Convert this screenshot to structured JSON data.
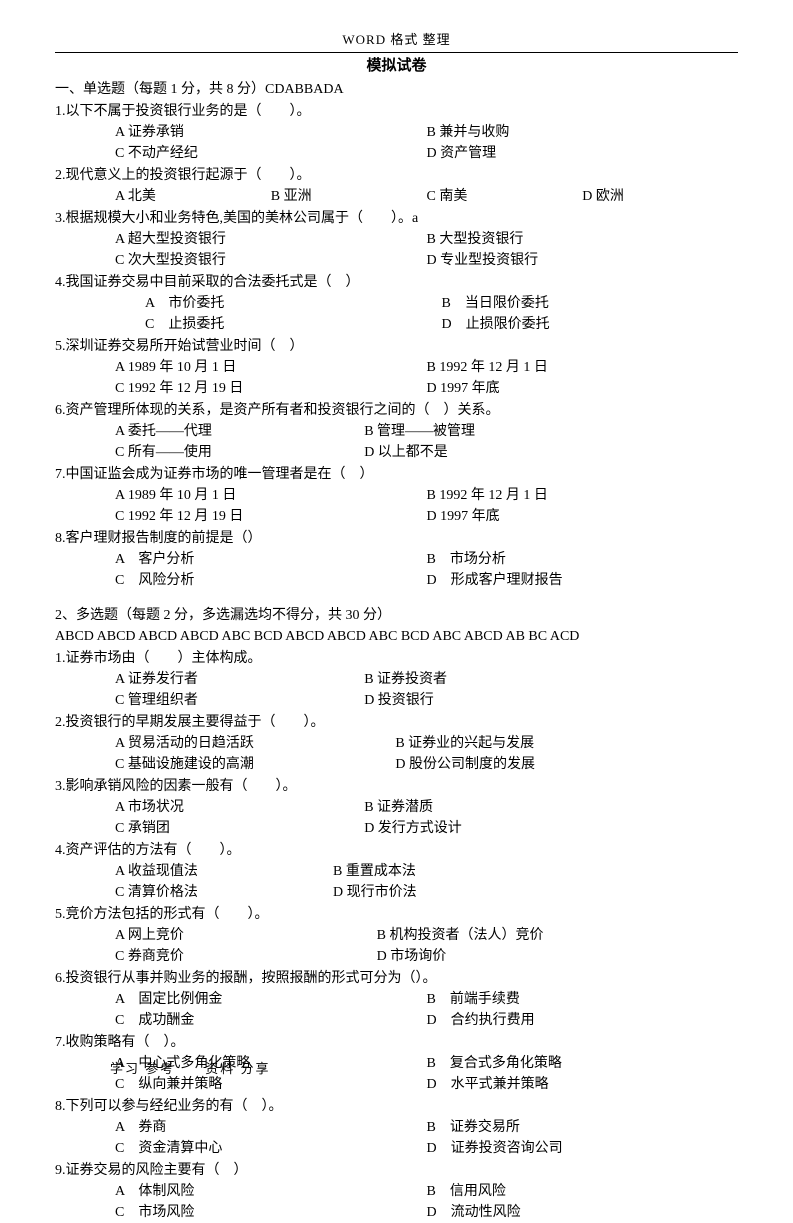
{
  "header": {
    "label": "WORD  格式  整理"
  },
  "title": "模拟试卷",
  "section1": {
    "header": "一、单选题（每题 1 分，共 8 分）CDABBADA",
    "q1": {
      "stem": "1.以下不属于投资银行业务的是（　　）。",
      "a": "A 证券承销",
      "b": "B 兼并与收购",
      "c": "C 不动产经纪",
      "d": "D 资产管理"
    },
    "q2": {
      "stem": "2.现代意义上的投资银行起源于（　　）。",
      "a": "A 北美",
      "b": "B 亚洲",
      "c": "C 南美",
      "d": "D 欧洲"
    },
    "q3": {
      "stem": "3.根据规模大小和业务特色,美国的美林公司属于（　　）。a",
      "a": "A 超大型投资银行",
      "b": "B 大型投资银行",
      "c": "C 次大型投资银行",
      "d": "D 专业型投资银行"
    },
    "q4": {
      "stem": "4.我国证券交易中目前采取的合法委托式是（　）",
      "a": "A　市价委托",
      "b": "B　当日限价委托",
      "c": "C　止损委托",
      "d": "D　止损限价委托"
    },
    "q5": {
      "stem": "5.深圳证券交易所开始试营业时间（　）",
      "a": "A 1989 年 10 月 1 日",
      "b": "B 1992 年 12 月 1 日",
      "c": "C 1992 年 12 月 19 日",
      "d": "D 1997 年底"
    },
    "q6": {
      "stem": "6.资产管理所体现的关系，是资产所有者和投资银行之间的（　）关系。",
      "a": "A 委托――代理",
      "b": "B 管理――被管理",
      "c": "C 所有――使用",
      "d": "D 以上都不是"
    },
    "q7": {
      "stem": "7.中国证监会成为证券市场的唯一管理者是在（　）",
      "a": "A 1989 年 10 月 1 日",
      "b": "B 1992 年 12 月 1 日",
      "c": "C 1992 年 12 月 19 日",
      "d": "D 1997 年底"
    },
    "q8": {
      "stem": "8.客户理财报告制度的前提是（）",
      "a": "A　客户分析",
      "b": "B　市场分析",
      "c": "C　风险分析",
      "d": "D　形成客户理财报告"
    }
  },
  "section2": {
    "header": "2、多选题（每题 2 分，多选漏选均不得分，共 30 分）",
    "answers": "ABCD ABCD ABCD ABCD ABC BCD ABCD ABCD ABC BCD ABC ABCD AB BC ACD",
    "q1": {
      "stem": "1.证券市场由（　　）主体构成。",
      "a": "A 证券发行者",
      "b": "B 证券投资者",
      "c": "C 管理组织者",
      "d": "D 投资银行"
    },
    "q2": {
      "stem": "2.投资银行的早期发展主要得益于（　　）。",
      "a": "A 贸易活动的日趋活跃",
      "b": "B 证券业的兴起与发展",
      "c": "C 基础设施建设的高潮",
      "d": "D 股份公司制度的发展"
    },
    "q3": {
      "stem": "3.影响承销风险的因素一般有（　　）。",
      "a": "A 市场状况",
      "b": "B 证券潜质",
      "c": "C 承销团",
      "d": "D 发行方式设计"
    },
    "q4": {
      "stem": "4.资产评估的方法有（　　）。",
      "a": "A 收益现值法",
      "b": "B 重置成本法",
      "c": "C 清算价格法",
      "d": "D 现行市价法"
    },
    "q5": {
      "stem": "5.竞价方法包括的形式有（　　）。",
      "a": "A 网上竞价",
      "b": "B 机构投资者（法人）竞价",
      "c": "C 券商竞价",
      "d": "D 市场询价"
    },
    "q6": {
      "stem": "6.投资银行从事并购业务的报酬，按照报酬的形式可分为（）。",
      "a": "A　固定比例佣金",
      "b": "B　前端手续费",
      "c": "C　成功酬金",
      "d": "D　合约执行费用"
    },
    "q7": {
      "stem": "7.收购策略有（　）。",
      "a": "A　中心式多角化策略",
      "b": "B　复合式多角化策略",
      "c": "C　纵向兼并策略",
      "d": "D　水平式兼并策略"
    },
    "q8": {
      "stem": "8.下列可以参与经纪业务的有（　）。",
      "a": "A　券商",
      "b": "B　证券交易所",
      "c": "C　资金清算中心",
      "d": "D　证券投资咨询公司"
    },
    "q9": {
      "stem": "9.证券交易的风险主要有（　）",
      "a": "A　体制风险",
      "b": "B　信用风险",
      "c": "C　市场风险",
      "d": "D　流动性风险"
    }
  },
  "footer": "学习  参考　　资料  分享"
}
